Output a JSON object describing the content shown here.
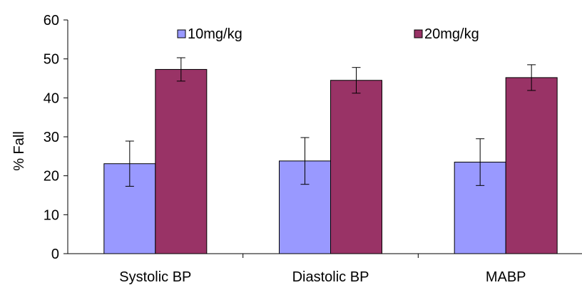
{
  "chart_data": {
    "type": "bar",
    "title": "",
    "xlabel": "",
    "ylabel": "% Fall",
    "ylim": [
      0,
      60
    ],
    "yticks": [
      "0",
      "10",
      "20",
      "30",
      "40",
      "50",
      "60"
    ],
    "grid": false,
    "legend_position": "top",
    "categories": [
      "Systolic BP",
      "Diastolic BP",
      "MABP"
    ],
    "series": [
      {
        "name": "10mg/kg",
        "color": "#9999ff",
        "values": [
          23.1,
          23.8,
          23.5
        ],
        "error": [
          5.8,
          6.0,
          6.0
        ]
      },
      {
        "name": "20mg/kg",
        "color": "#993366",
        "values": [
          47.3,
          44.5,
          45.2
        ],
        "error": [
          3.0,
          3.3,
          3.3
        ]
      }
    ]
  }
}
